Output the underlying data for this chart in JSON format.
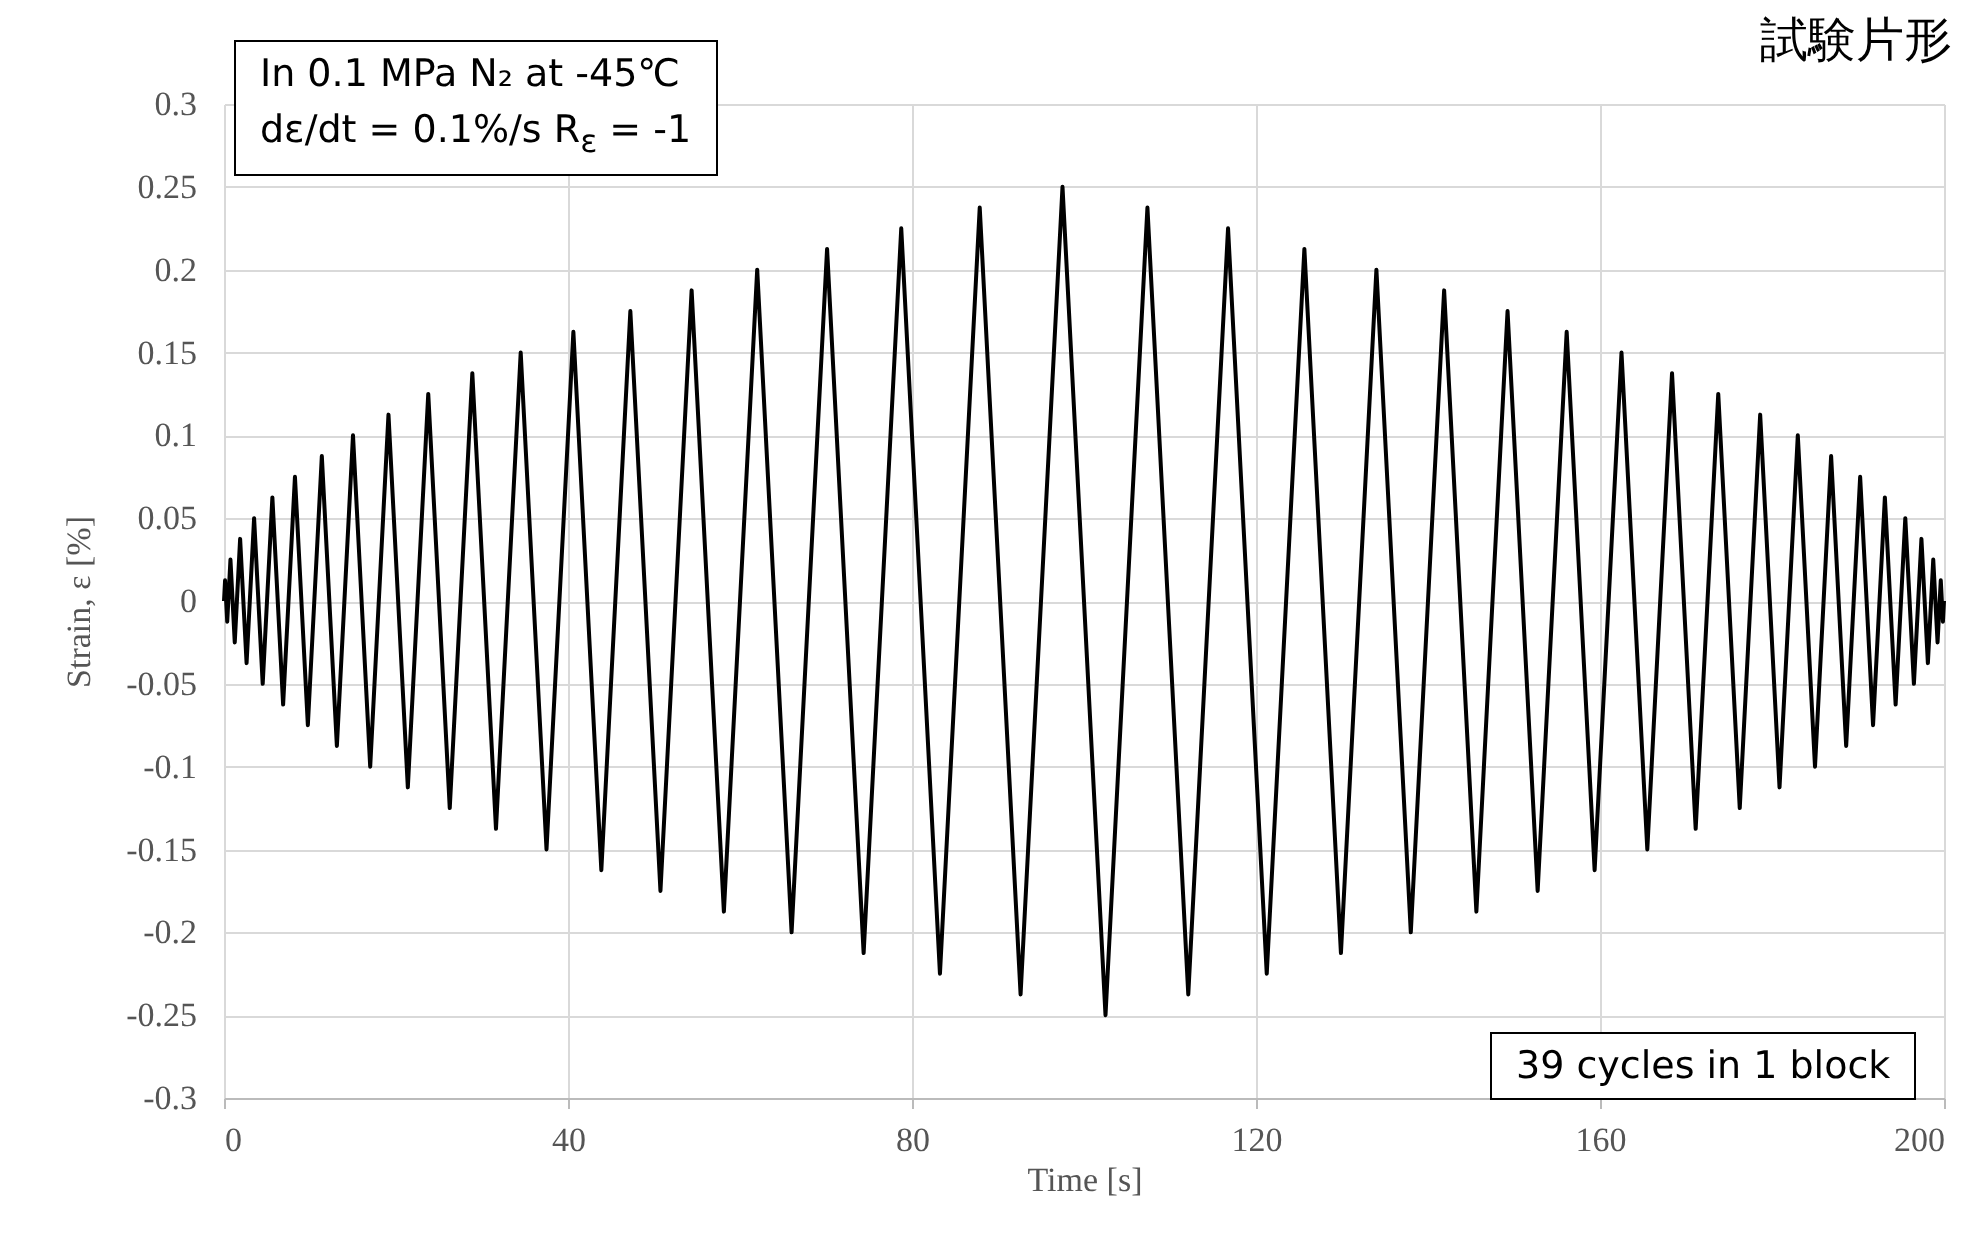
{
  "chart_data": {
    "type": "line",
    "xlabel": "Time [s]",
    "ylabel": "Strain, ε [%]",
    "x": [
      0,
      0.125,
      0.375,
      0.75,
      1.25,
      1.875,
      2.625,
      3.5,
      4.5,
      5.625,
      6.875,
      8.25,
      9.75,
      11.375,
      13.125,
      15,
      17,
      19.125,
      21.375,
      23.75,
      26.25,
      28.875,
      31.625,
      34.5,
      37.5,
      40.625,
      43.875,
      47.25,
      50.75,
      54.375,
      58.125,
      62,
      66,
      70.125,
      74.375,
      78.75,
      83.25,
      87.875,
      92.625,
      97.5,
      102.5,
      107.375,
      112.125,
      116.75,
      121.25,
      125.625,
      129.875,
      134,
      138,
      141.875,
      145.625,
      149.25,
      152.75,
      156.125,
      159.375,
      162.5,
      165.5,
      168.375,
      171.125,
      173.75,
      176.25,
      178.625,
      180.875,
      183,
      185,
      186.875,
      188.625,
      190.25,
      191.75,
      193.125,
      194.375,
      195.5,
      196.5,
      197.375,
      198.125,
      198.75,
      199.25,
      199.625,
      199.875,
      200
    ],
    "series": [
      {
        "color": "#000000",
        "values": [
          0,
          0.0125,
          -0.0125,
          0.025,
          -0.025,
          0.0375,
          -0.0375,
          0.05,
          -0.05,
          0.0625,
          -0.0625,
          0.075,
          -0.075,
          0.0875,
          -0.0875,
          0.1,
          -0.1,
          0.1125,
          -0.1125,
          0.125,
          -0.125,
          0.1375,
          -0.1375,
          0.15,
          -0.15,
          0.1625,
          -0.1625,
          0.175,
          -0.175,
          0.1875,
          -0.1875,
          0.2,
          -0.2,
          0.2125,
          -0.2125,
          0.225,
          -0.225,
          0.2375,
          -0.2375,
          0.25,
          -0.25,
          0.2375,
          -0.2375,
          0.225,
          -0.225,
          0.2125,
          -0.2125,
          0.2,
          -0.2,
          0.1875,
          -0.1875,
          0.175,
          -0.175,
          0.1625,
          -0.1625,
          0.15,
          -0.15,
          0.1375,
          -0.1375,
          0.125,
          -0.125,
          0.1125,
          -0.1125,
          0.1,
          -0.1,
          0.0875,
          -0.0875,
          0.075,
          -0.075,
          0.0625,
          -0.0625,
          0.05,
          -0.05,
          0.0375,
          -0.0375,
          0.025,
          -0.025,
          0.0125,
          -0.0125,
          0
        ]
      }
    ],
    "xlim": [
      0,
      200
    ],
    "xticks": [
      0,
      40,
      80,
      120,
      160,
      200
    ],
    "ylim": [
      -0.3,
      0.3
    ],
    "yticks": [
      -0.3,
      -0.25,
      -0.2,
      -0.15,
      -0.1,
      -0.05,
      0,
      0.05,
      0.1,
      0.15,
      0.2,
      0.25,
      0.3
    ],
    "grid": true,
    "line_style": "solid",
    "marker": "none",
    "annotations": [
      "In 0.1 MPa N₂ at -45℃",
      "dε/dt = 0.1%/s  R$_{ε}$ = -1",
      "39 cycles in 1 block",
      "試験片形"
    ]
  }
}
